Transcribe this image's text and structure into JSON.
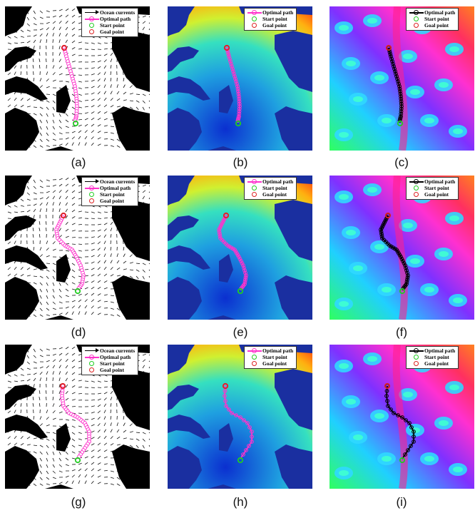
{
  "legend": {
    "ocean_currents": "Ocean currents",
    "optimal_path": "Optimal path",
    "start_point": "Start point",
    "goal_point": "Goal point"
  },
  "colors": {
    "path_magenta": "#ff33cc",
    "path_black": "#000000",
    "start_marker": "#22cc22",
    "goal_marker": "#dd2222",
    "land": "#000000",
    "water": "#ffffff",
    "field_background": "#1a2fa0"
  },
  "panels": [
    {
      "id": "a",
      "caption": "(a)",
      "kind": "currents",
      "variant": 0
    },
    {
      "id": "b",
      "caption": "(b)",
      "kind": "distance",
      "variant": 0
    },
    {
      "id": "c",
      "caption": "(c)",
      "kind": "cost",
      "variant": 0
    },
    {
      "id": "d",
      "caption": "(d)",
      "kind": "currents",
      "variant": 1
    },
    {
      "id": "e",
      "caption": "(e)",
      "kind": "distance",
      "variant": 1
    },
    {
      "id": "f",
      "caption": "(f)",
      "kind": "cost",
      "variant": 1
    },
    {
      "id": "g",
      "caption": "(g)",
      "kind": "currents",
      "variant": 2
    },
    {
      "id": "h",
      "caption": "(h)",
      "kind": "distance",
      "variant": 2
    },
    {
      "id": "i",
      "caption": "(i)",
      "kind": "cost",
      "variant": 2
    }
  ]
}
